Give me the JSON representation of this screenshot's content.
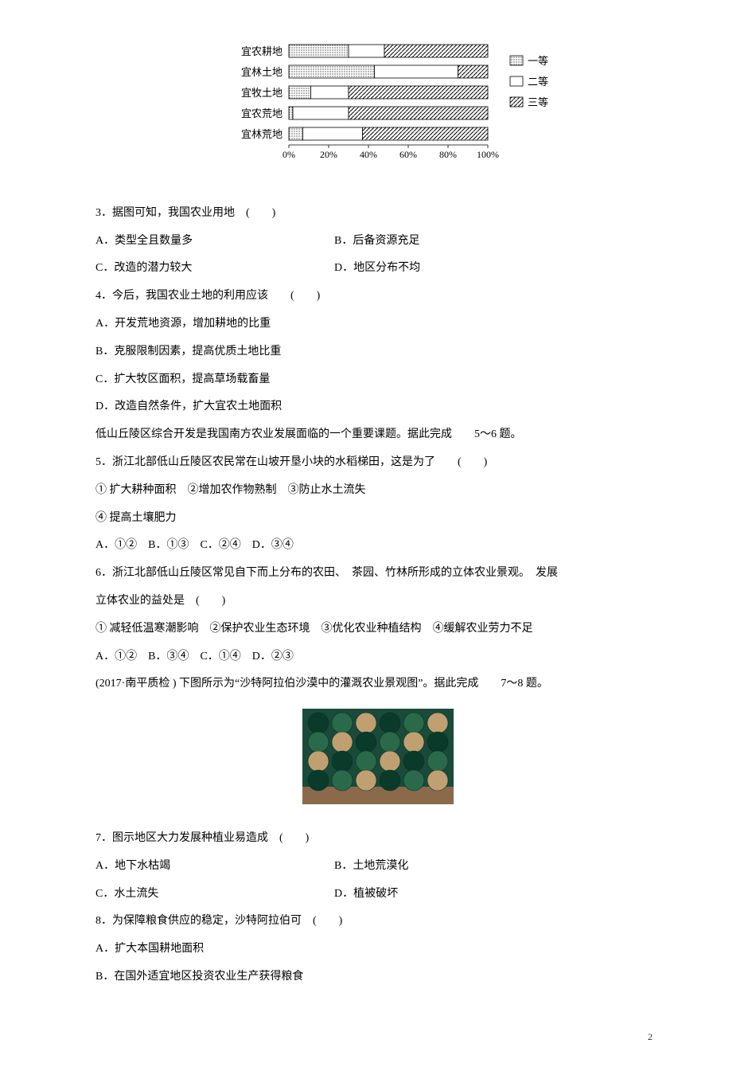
{
  "chart": {
    "categories": [
      "宜农耕地",
      "宜林土地",
      "宜牧土地",
      "宜农荒地",
      "宜林荒地"
    ],
    "segments": [
      [
        30,
        18,
        52
      ],
      [
        43,
        42,
        15
      ],
      [
        11,
        19,
        70
      ],
      [
        2,
        28,
        70
      ],
      [
        7,
        30,
        63
      ]
    ],
    "fills": {
      "seg1": "#fine-dots",
      "seg2": "#ffffff",
      "seg3": "#diag"
    },
    "axis_ticks": [
      "0%",
      "20%",
      "40%",
      "60%",
      "80%",
      "100%"
    ],
    "legend": [
      "一等",
      "二等",
      "三等"
    ],
    "bar_color_stroke": "#000000",
    "label_fontsize": 13,
    "axis_fontsize": 12
  },
  "q3": {
    "stem": "3．据图可知，我国农业用地　(　　)",
    "optA": "A．类型全且数量多",
    "optB": "B．后备资源充足",
    "optC": "C．改造的潜力较大",
    "optD": "D．地区分布不均"
  },
  "q4": {
    "stem": "4．今后，我国农业土地的利用应该　　(　　)",
    "optA": "A．开发荒地资源，增加耕地的比重",
    "optB": "B．克服限制因素，提高优质土地比重",
    "optC": "C．扩大牧区面积，提高草场载畜量",
    "optD": "D．改造自然条件，扩大宜农土地面积"
  },
  "intro56": "低山丘陵区综合开发是我国南方农业发展面临的一个重要课题。据此完成　　5～6 题。",
  "q5": {
    "stem": "5．浙江北部低山丘陵区农民常在山坡开垦小块的水稻梯田，这是为了　　(　　)",
    "sub1": "① 扩大耕种面积　②增加农作物熟制　③防止水土流失",
    "sub2": "④ 提高土壤肥力",
    "opts": "A．①②　B．①③　C．②④　D．③④"
  },
  "q6": {
    "stem1": "6．浙江北部低山丘陵区常见自下而上分布的农田、　茶园、竹林所形成的立体农业景观。　发展",
    "stem2": "立体农业的益处是　(　　)",
    "sub": "① 减轻低温寒潮影响　②保护农业生态环境　③优化农业种植结构　④缓解农业劳力不足",
    "opts": "A．①②　B．③④　C．①④　D．②③"
  },
  "intro78": "(2017·南平质检 ) 下图所示为“沙特阿拉伯沙漠中的灌溉农业景观图”。据此完成　　7～8 题。",
  "photo": {
    "bg": "#1a4a3a",
    "sand": "#8a6a4a",
    "circle_fill": "#2a6a4a",
    "circle_dark": "#0a3a2a",
    "circle_light": "#c0a070"
  },
  "q7": {
    "stem": "7．图示地区大力发展种植业易造成　(　　)",
    "optA": "A．地下水枯竭",
    "optB": "B．土地荒漠化",
    "optC": "C．水土流失",
    "optD": "D．植被破坏"
  },
  "q8": {
    "stem": "8．为保障粮食供应的稳定，沙特阿拉伯可　(　　)",
    "optA": "A．扩大本国耕地面积",
    "optB": "B．在国外适宜地区投资农业生产获得粮食"
  },
  "page_num": "2"
}
